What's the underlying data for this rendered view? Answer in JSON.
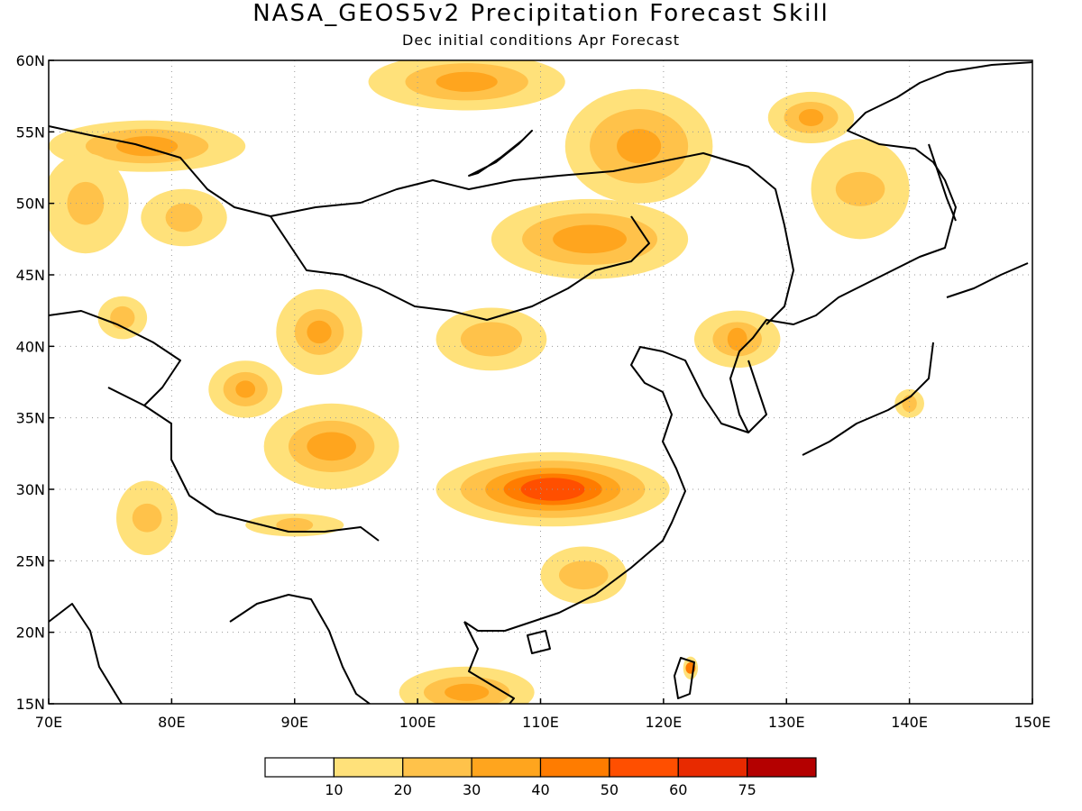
{
  "title": "NASA_GEOS5v2 Precipitation Forecast Skill",
  "subtitle": "Dec initial conditions  Apr Forecast",
  "map": {
    "lon_range": [
      70,
      150
    ],
    "lat_range": [
      15,
      60
    ],
    "lon_ticks": [
      "70E",
      "80E",
      "90E",
      "100E",
      "110E",
      "120E",
      "130E",
      "140E",
      "150E"
    ],
    "lat_ticks": [
      "15N",
      "20N",
      "25N",
      "30N",
      "35N",
      "40N",
      "45N",
      "50N",
      "55N",
      "60N"
    ],
    "grid": "dotted"
  },
  "colorbar": {
    "colors": [
      "#ffffff",
      "#ffe17a",
      "#ffc24a",
      "#ffa51e",
      "#ff7c00",
      "#ff4f00",
      "#e82a00",
      "#b40000"
    ],
    "labels": [
      "10",
      "20",
      "30",
      "40",
      "50",
      "60",
      "75"
    ]
  },
  "skill_regions": [
    {
      "name": "yangtze",
      "lon": 111,
      "lat": 30,
      "levels": [
        {
          "c": 1,
          "rx": 9.5,
          "ry": 2.6
        },
        {
          "c": 2,
          "rx": 7.5,
          "ry": 2.0
        },
        {
          "c": 3,
          "rx": 5.5,
          "ry": 1.5
        },
        {
          "c": 4,
          "rx": 4.0,
          "ry": 1.1
        },
        {
          "c": 5,
          "rx": 2.6,
          "ry": 0.8
        }
      ]
    },
    {
      "name": "tibet-south",
      "lon": 93,
      "lat": 33,
      "levels": [
        {
          "c": 1,
          "rx": 5.5,
          "ry": 3.0
        },
        {
          "c": 2,
          "rx": 3.5,
          "ry": 1.8
        },
        {
          "c": 3,
          "rx": 2.0,
          "ry": 1.0
        }
      ]
    },
    {
      "name": "tibet-north",
      "lon": 92,
      "lat": 41,
      "levels": [
        {
          "c": 1,
          "rx": 3.5,
          "ry": 3.0
        },
        {
          "c": 2,
          "rx": 2.0,
          "ry": 1.6
        },
        {
          "c": 3,
          "rx": 1.0,
          "ry": 0.8
        }
      ]
    },
    {
      "name": "tibet-west",
      "lon": 86,
      "lat": 37,
      "levels": [
        {
          "c": 1,
          "rx": 3.0,
          "ry": 2.0
        },
        {
          "c": 2,
          "rx": 1.8,
          "ry": 1.2
        },
        {
          "c": 3,
          "rx": 0.8,
          "ry": 0.6
        }
      ]
    },
    {
      "name": "mongolia-east",
      "lon": 114,
      "lat": 47.5,
      "levels": [
        {
          "c": 1,
          "rx": 8.0,
          "ry": 2.8
        },
        {
          "c": 2,
          "rx": 5.5,
          "ry": 1.8
        },
        {
          "c": 3,
          "rx": 3.0,
          "ry": 1.0
        }
      ]
    },
    {
      "name": "siberia-north",
      "lon": 104,
      "lat": 58.5,
      "levels": [
        {
          "c": 1,
          "rx": 8.0,
          "ry": 2.0
        },
        {
          "c": 2,
          "rx": 5.0,
          "ry": 1.3
        },
        {
          "c": 3,
          "rx": 2.5,
          "ry": 0.7
        }
      ]
    },
    {
      "name": "transbaikal",
      "lon": 118,
      "lat": 54,
      "levels": [
        {
          "c": 1,
          "rx": 6.0,
          "ry": 4.0
        },
        {
          "c": 2,
          "rx": 4.0,
          "ry": 2.6
        },
        {
          "c": 3,
          "rx": 1.8,
          "ry": 1.2
        }
      ]
    },
    {
      "name": "kazakh-north",
      "lon": 78,
      "lat": 54,
      "levels": [
        {
          "c": 1,
          "rx": 8.0,
          "ry": 1.8
        },
        {
          "c": 2,
          "rx": 5.0,
          "ry": 1.2
        },
        {
          "c": 3,
          "rx": 2.5,
          "ry": 0.7
        }
      ]
    },
    {
      "name": "amur",
      "lon": 132,
      "lat": 56,
      "levels": [
        {
          "c": 1,
          "rx": 3.5,
          "ry": 1.8
        },
        {
          "c": 2,
          "rx": 2.2,
          "ry": 1.1
        },
        {
          "c": 3,
          "rx": 1.0,
          "ry": 0.6
        }
      ]
    },
    {
      "name": "liaoning",
      "lon": 126,
      "lat": 40.5,
      "levels": [
        {
          "c": 1,
          "rx": 3.5,
          "ry": 2.0
        },
        {
          "c": 2,
          "rx": 2.0,
          "ry": 1.2
        },
        {
          "c": 3,
          "rx": 0.8,
          "ry": 0.8
        }
      ]
    },
    {
      "name": "ordos",
      "lon": 106,
      "lat": 40.5,
      "levels": [
        {
          "c": 1,
          "rx": 4.5,
          "ry": 2.2
        },
        {
          "c": 2,
          "rx": 2.5,
          "ry": 1.2
        }
      ]
    },
    {
      "name": "indochina-south",
      "lon": 104,
      "lat": 15.8,
      "levels": [
        {
          "c": 1,
          "rx": 5.5,
          "ry": 1.8
        },
        {
          "c": 2,
          "rx": 3.5,
          "ry": 1.1
        },
        {
          "c": 3,
          "rx": 1.8,
          "ry": 0.6
        }
      ]
    },
    {
      "name": "south-china",
      "lon": 113.5,
      "lat": 24,
      "levels": [
        {
          "c": 1,
          "rx": 3.5,
          "ry": 2.0
        },
        {
          "c": 2,
          "rx": 2.0,
          "ry": 1.0
        }
      ]
    },
    {
      "name": "india-northwest",
      "lon": 78,
      "lat": 28,
      "levels": [
        {
          "c": 1,
          "rx": 2.5,
          "ry": 2.6
        },
        {
          "c": 2,
          "rx": 1.2,
          "ry": 1.0
        }
      ]
    },
    {
      "name": "tarim-west",
      "lon": 76,
      "lat": 42,
      "levels": [
        {
          "c": 1,
          "rx": 2.0,
          "ry": 1.5
        },
        {
          "c": 2,
          "rx": 1.0,
          "ry": 0.8
        }
      ]
    },
    {
      "name": "kazakh-central",
      "lon": 81,
      "lat": 49,
      "levels": [
        {
          "c": 1,
          "rx": 3.5,
          "ry": 2.0
        },
        {
          "c": 2,
          "rx": 1.5,
          "ry": 1.0
        }
      ]
    },
    {
      "name": "kazakh-west",
      "lon": 73,
      "lat": 50,
      "levels": [
        {
          "c": 1,
          "rx": 3.5,
          "ry": 3.5
        },
        {
          "c": 2,
          "rx": 1.5,
          "ry": 1.5
        }
      ]
    },
    {
      "name": "okhotsk",
      "lon": 136,
      "lat": 51,
      "levels": [
        {
          "c": 1,
          "rx": 4.0,
          "ry": 3.5
        },
        {
          "c": 2,
          "rx": 2.0,
          "ry": 1.2
        }
      ]
    },
    {
      "name": "japan",
      "lon": 140,
      "lat": 36,
      "levels": [
        {
          "c": 1,
          "rx": 1.2,
          "ry": 1.0
        },
        {
          "c": 2,
          "rx": 0.6,
          "ry": 0.6
        }
      ]
    },
    {
      "name": "taiwan",
      "lon": 122.2,
      "lat": 17.5,
      "levels": [
        {
          "c": 1,
          "rx": 0.6,
          "ry": 0.8
        },
        {
          "c": 4,
          "rx": 0.4,
          "ry": 0.4
        }
      ]
    },
    {
      "name": "bangladesh",
      "lon": 90,
      "lat": 27.5,
      "levels": [
        {
          "c": 1,
          "rx": 4.0,
          "ry": 0.8
        },
        {
          "c": 2,
          "rx": 1.5,
          "ry": 0.5
        }
      ]
    }
  ]
}
